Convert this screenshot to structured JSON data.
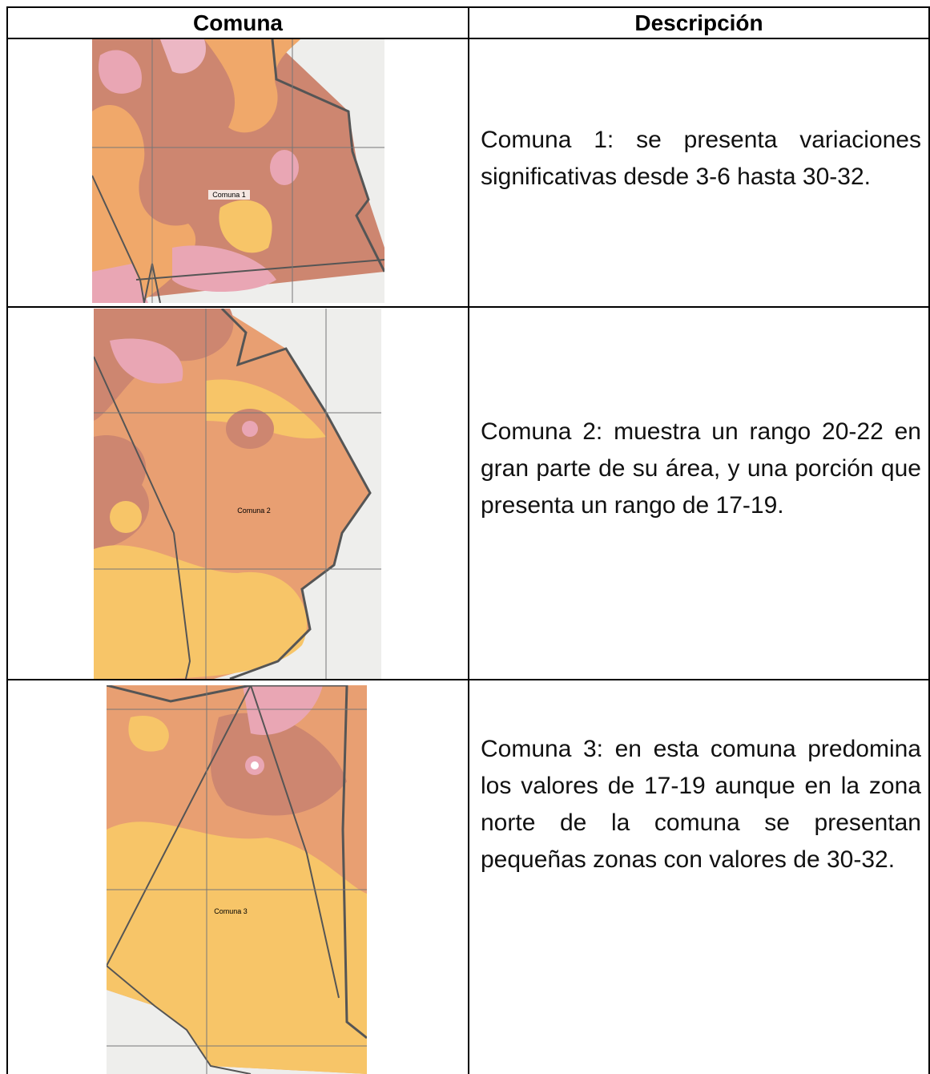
{
  "table": {
    "header": [
      "Comuna",
      "Descripción"
    ],
    "rows": [
      {
        "map_label": "Comuna 1",
        "description": "Comuna 1: se presenta variaciones significativas desde 3-6 hasta 30-32."
      },
      {
        "map_label": "Comuna 2",
        "description": "Comuna 2: muestra un rango 20-22 en gran parte de su área, y una porción que presenta un rango de 17-19."
      },
      {
        "map_label": "Comuna 3",
        "description": "Comuna 3: en esta comuna predomina los valores de 17-19 aunque en la zona norte de la comuna se presentan pequeñas zonas con valores de 30-32."
      }
    ]
  }
}
